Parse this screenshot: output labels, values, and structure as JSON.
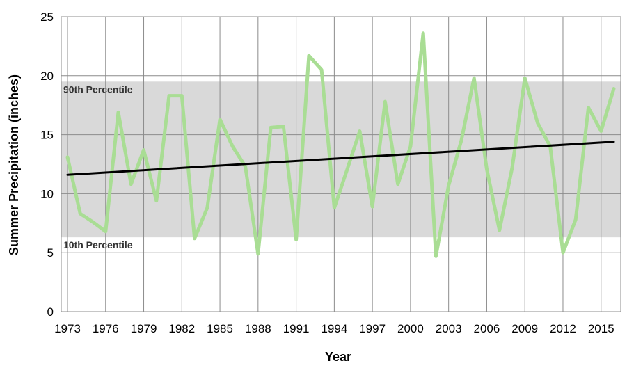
{
  "chart_data": {
    "type": "line",
    "title": "",
    "xlabel": "Year",
    "ylabel": "Summer Precipitation (inches)",
    "ylim": [
      0,
      25
    ],
    "y_ticks": [
      0,
      5,
      10,
      15,
      20,
      25
    ],
    "xlim": [
      1973,
      2016
    ],
    "x_tick_labels": [
      "1973",
      "1976",
      "1979",
      "1982",
      "1985",
      "1988",
      "1991",
      "1994",
      "1997",
      "2000",
      "2003",
      "2006",
      "2009",
      "2012",
      "2015"
    ],
    "grid": true,
    "bands": [
      {
        "label": "90th Percentile",
        "value": 19.5
      },
      {
        "label": "10th Percentile",
        "value": 6.3
      }
    ],
    "band_color": "#d9d9d9",
    "series": [
      {
        "color": "#a9dd94",
        "x": [
          1973,
          1974,
          1975,
          1976,
          1977,
          1978,
          1979,
          1980,
          1981,
          1982,
          1983,
          1984,
          1985,
          1986,
          1987,
          1988,
          1989,
          1990,
          1991,
          1992,
          1993,
          1994,
          1995,
          1996,
          1997,
          1998,
          1999,
          2000,
          2001,
          2002,
          2003,
          2004,
          2005,
          2006,
          2007,
          2008,
          2009,
          2010,
          2011,
          2012,
          2013,
          2014,
          2015,
          2016
        ],
        "values": [
          13.1,
          8.3,
          7.6,
          6.8,
          16.9,
          10.8,
          13.7,
          9.4,
          18.3,
          18.3,
          6.2,
          8.8,
          16.3,
          14.0,
          12.3,
          4.9,
          15.6,
          15.7,
          6.1,
          21.7,
          20.5,
          8.8,
          12.0,
          15.3,
          8.9,
          17.8,
          10.8,
          14.0,
          23.6,
          4.7,
          10.7,
          14.5,
          19.8,
          12.1,
          6.9,
          12.2,
          19.8,
          16.0,
          14.0,
          5.0,
          7.8,
          17.3,
          15.3,
          18.9
        ]
      },
      {
        "color": "#000000",
        "x": [
          1973,
          2016
        ],
        "values": [
          11.6,
          14.4
        ]
      }
    ]
  }
}
